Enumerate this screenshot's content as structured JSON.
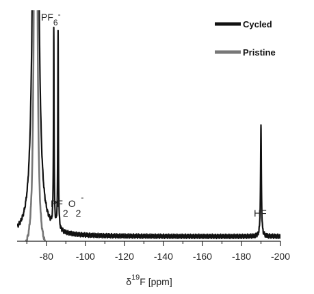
{
  "chart_data": {
    "type": "line",
    "xlabel": {
      "delta": "δ",
      "sup": "19",
      "rest": "F [ppm]"
    },
    "xlim": [
      -65,
      -200
    ],
    "x_ticks": [
      -80,
      -100,
      -120,
      -140,
      -160,
      -180,
      -200
    ],
    "x_tick_labels": [
      "-80",
      "-100",
      "-120",
      "-140",
      "-160",
      "-180",
      "-200"
    ],
    "yaxis_labels": false,
    "legend": {
      "position": "top-right"
    },
    "series": [
      {
        "name": "Cycled",
        "color": "#111111",
        "baseline": 0.0,
        "peaks": [
          {
            "x": -74.5,
            "height": 6.5,
            "width": 0.8
          },
          {
            "x": -83.8,
            "height": 0.9,
            "width": 0.18
          },
          {
            "x": -86.0,
            "height": 0.9,
            "width": 0.18
          },
          {
            "x": -190.0,
            "height": 0.5,
            "width": 0.25
          }
        ]
      },
      {
        "name": "Pristine",
        "color": "#777777",
        "baseline": -0.08,
        "peaks": [
          {
            "x": -74.5,
            "height": 6.5,
            "width": 0.45
          }
        ]
      }
    ],
    "annotations": [
      {
        "name": "pf6",
        "x": -73,
        "y": 0.86,
        "base": "PF",
        "sub": "6",
        "sup": "-"
      },
      {
        "name": "pf2o2",
        "x": -82,
        "y": 0.1,
        "parts": [
          "PF",
          "2",
          "O",
          "2",
          "-"
        ]
      },
      {
        "name": "hf",
        "x": -190,
        "y": 0.09,
        "text": "HF"
      }
    ]
  }
}
